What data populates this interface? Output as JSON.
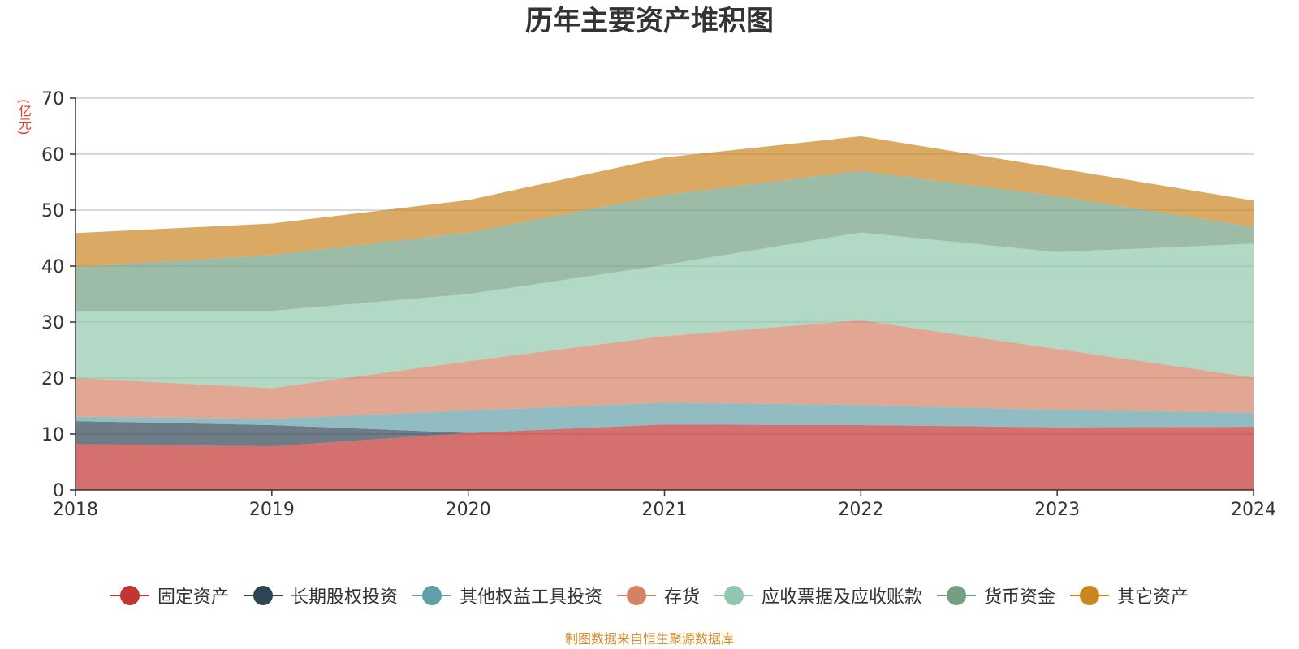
{
  "title": "历年主要资产堆积图",
  "unit_label": "(亿元)",
  "footer_note": "制图数据来自恒生聚源数据库",
  "chart_data": {
    "type": "area",
    "stacked": true,
    "title": "历年主要资产堆积图",
    "ylabel": "(亿元)",
    "xlabel": "",
    "x": [
      "2018",
      "2019",
      "2020",
      "2021",
      "2022",
      "2023",
      "2024"
    ],
    "ylim": [
      0,
      70
    ],
    "yticks": [
      0,
      10,
      20,
      30,
      40,
      50,
      60,
      70
    ],
    "grid": true,
    "legend_position": "bottom",
    "series": [
      {
        "name": "固定资产",
        "color": "#c23531",
        "values": [
          8.2,
          7.8,
          10.2,
          11.7,
          11.6,
          11.2,
          11.3
        ]
      },
      {
        "name": "长期股权投资",
        "color": "#2f4554",
        "values": [
          4.1,
          3.8,
          0.0,
          0.0,
          0.0,
          0.0,
          0.0
        ]
      },
      {
        "name": "其他权益工具投资",
        "color": "#61a0a8",
        "values": [
          0.8,
          1.1,
          4.0,
          3.9,
          3.6,
          3.1,
          2.5
        ]
      },
      {
        "name": "存货",
        "color": "#d48265",
        "values": [
          6.9,
          5.5,
          8.8,
          11.9,
          15.1,
          10.9,
          6.3
        ]
      },
      {
        "name": "应收票据及应收账款",
        "color": "#91c7ae",
        "values": [
          12.0,
          13.8,
          12.0,
          12.7,
          15.7,
          17.3,
          23.9
        ]
      },
      {
        "name": "货币资金",
        "color": "#749f83",
        "values": [
          7.8,
          10.0,
          11.0,
          12.5,
          11.0,
          10.0,
          3.0
        ]
      },
      {
        "name": "其它资产",
        "color": "#ca8622",
        "values": [
          6.1,
          5.6,
          5.8,
          6.7,
          6.2,
          5.0,
          4.7
        ]
      }
    ]
  }
}
